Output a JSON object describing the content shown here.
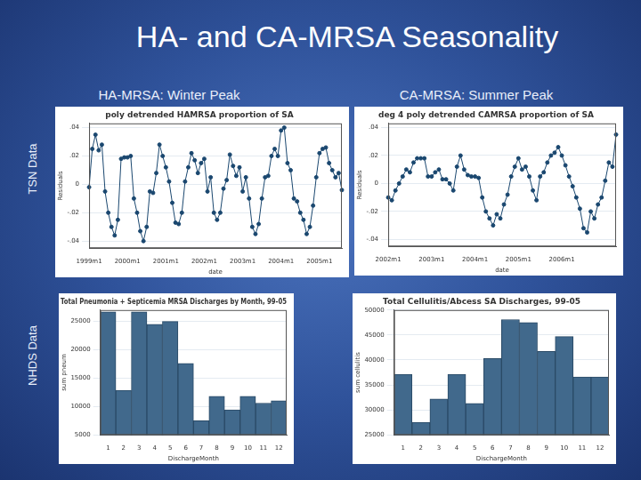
{
  "page": {
    "title": "HA- and CA-MRSA Seasonality",
    "column_headers": [
      "HA-MRSA: Winter Peak",
      "CA-MRSA: Summer Peak"
    ],
    "row_labels": [
      "TSN Data",
      "NHDS Data"
    ]
  },
  "chart_data": [
    {
      "type": "line",
      "title": "poly detrended HAMRSA proportion of SA",
      "x_label": "date",
      "y_label": "Residuals",
      "categories": [
        "1999m1",
        null,
        null,
        null,
        null,
        null,
        null,
        null,
        null,
        null,
        null,
        null,
        "2000m1",
        null,
        null,
        null,
        null,
        null,
        null,
        null,
        null,
        null,
        null,
        null,
        "2001m1",
        null,
        null,
        null,
        null,
        null,
        null,
        null,
        null,
        null,
        null,
        null,
        "2002m1",
        null,
        null,
        null,
        null,
        null,
        null,
        null,
        null,
        null,
        null,
        null,
        "2003m1",
        null,
        null,
        null,
        null,
        null,
        null,
        null,
        null,
        null,
        null,
        null,
        "2004m1",
        null,
        null,
        null,
        null,
        null,
        null,
        null,
        null,
        null,
        null,
        null,
        "2005m1",
        null,
        null,
        null,
        null,
        null,
        null,
        null
      ],
      "values": [
        -0.002,
        0.025,
        0.035,
        0.024,
        0.028,
        -0.005,
        -0.02,
        -0.03,
        -0.036,
        -0.025,
        0.018,
        0.019,
        0.019,
        0.02,
        -0.01,
        -0.02,
        -0.033,
        -0.04,
        -0.03,
        -0.005,
        -0.006,
        0.008,
        0.028,
        0.02,
        0.012,
        0.002,
        -0.013,
        -0.027,
        -0.028,
        -0.02,
        0.002,
        0.012,
        0.022,
        0.017,
        0.008,
        0.015,
        0.018,
        -0.005,
        0.005,
        -0.02,
        -0.025,
        -0.02,
        -0.003,
        0.003,
        0.021,
        0.013,
        0.006,
        0.012,
        -0.005,
        0.005,
        -0.01,
        -0.03,
        -0.035,
        -0.028,
        -0.01,
        0.005,
        0.006,
        0.02,
        0.025,
        0.02,
        0.038,
        0.04,
        0.015,
        0.01,
        -0.01,
        -0.012,
        -0.02,
        -0.025,
        -0.035,
        -0.03,
        -0.015,
        0.005,
        0.022,
        0.025,
        0.026,
        0.015,
        0.01,
        0.005,
        0.008,
        -0.004
      ],
      "color": "#1a476f",
      "marker": "circle",
      "ylim": [
        -0.045,
        0.043
      ],
      "yticks": [
        {
          "value": -0.04,
          "label": "-.04"
        },
        {
          "value": -0.02,
          "label": "-.02"
        },
        0,
        {
          "value": 0.02,
          "label": ".02"
        },
        {
          "value": 0.04,
          "label": ".04"
        }
      ],
      "grid": true
    },
    {
      "type": "line",
      "title": "deg 4 poly detrended CAMRSA proportion of SA",
      "x_label": "date",
      "y_label": "Residuals",
      "categories": [
        "2002m1",
        null,
        null,
        null,
        null,
        null,
        null,
        null,
        null,
        null,
        null,
        null,
        "2003m1",
        null,
        null,
        null,
        null,
        null,
        null,
        null,
        null,
        null,
        null,
        null,
        "2004m1",
        null,
        null,
        null,
        null,
        null,
        null,
        null,
        null,
        null,
        null,
        null,
        "2005m1",
        null,
        null,
        null,
        null,
        null,
        null,
        null,
        null,
        null,
        null,
        null,
        "2006m1",
        null,
        null,
        null,
        null,
        null,
        null,
        null,
        null,
        null,
        null,
        null,
        null,
        null,
        null,
        null
      ],
      "values": [
        -0.01,
        -0.012,
        -0.005,
        0,
        0.005,
        0.01,
        0.008,
        0.015,
        0.018,
        0.018,
        0.018,
        0.005,
        0.005,
        0.008,
        0.01,
        0.003,
        0.003,
        0,
        -0.005,
        0.012,
        0.02,
        0.01,
        0.006,
        0.005,
        0.005,
        0.004,
        -0.01,
        -0.02,
        -0.025,
        -0.03,
        -0.022,
        -0.025,
        -0.015,
        -0.008,
        0.005,
        0.012,
        0.018,
        0.01,
        0.012,
        0.005,
        -0.005,
        -0.012,
        0.005,
        0.008,
        0.015,
        0.02,
        0.022,
        0.026,
        0.02,
        0.013,
        0.005,
        -0.002,
        -0.01,
        -0.018,
        -0.032,
        -0.035,
        -0.02,
        -0.025,
        -0.015,
        -0.01,
        0.002,
        0.015,
        0.012,
        0.035
      ],
      "color": "#1a476f",
      "marker": "circle",
      "ylim": [
        -0.045,
        0.043
      ],
      "yticks": [
        {
          "value": -0.04,
          "label": "-.04"
        },
        {
          "value": -0.02,
          "label": "-.02"
        },
        0,
        {
          "value": 0.02,
          "label": ".02"
        },
        {
          "value": 0.04,
          "label": ".04"
        }
      ],
      "grid": true
    },
    {
      "type": "bar",
      "title": "Total Pneumonia + Septicemia MRSA Discharges by Month, 99-05",
      "x_label": "DischargeMonth",
      "y_label": "sum pneum",
      "categories": [
        "1",
        "2",
        "3",
        "4",
        "5",
        "6",
        "7",
        "8",
        "9",
        "10",
        "11",
        "12"
      ],
      "values": [
        26700,
        12850,
        26700,
        24500,
        25000,
        17600,
        7500,
        11800,
        9400,
        11800,
        10600,
        11000
      ],
      "color": "#41698c",
      "ylim": [
        5000,
        27000
      ],
      "yticks": [
        5000,
        10000,
        15000,
        20000,
        25000
      ],
      "grid": true
    },
    {
      "type": "bar",
      "title": "Total Cellulitis/Abcess SA Discharges, 99-05",
      "x_label": "DischargeMonth",
      "y_label": "sum cellulitis",
      "categories": [
        "1",
        "2",
        "3",
        "4",
        "5",
        "6",
        "7",
        "8",
        "9",
        "10",
        "11",
        "12"
      ],
      "values": [
        37150,
        27500,
        32200,
        37150,
        31300,
        40300,
        48100,
        47500,
        41700,
        44700,
        36600,
        36600
      ],
      "color": "#41698c",
      "ylim": [
        25000,
        50000
      ],
      "yticks": [
        25000,
        30000,
        35000,
        40000,
        45000,
        50000
      ],
      "grid": true
    }
  ]
}
